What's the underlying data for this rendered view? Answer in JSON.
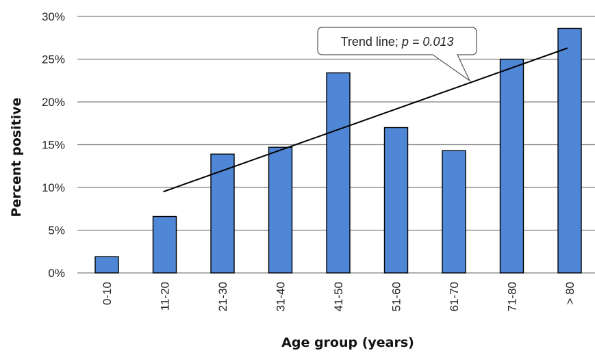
{
  "chart_data": {
    "type": "bar",
    "title": "",
    "xlabel": "Age group (years)",
    "ylabel": "Percent positive",
    "categories": [
      "0-10",
      "11-20",
      "21-30",
      "31-40",
      "41-50",
      "51-60",
      "61-70",
      "71-80",
      "> 80"
    ],
    "series": [
      {
        "values": [
          1.9,
          6.6,
          13.9,
          14.7,
          23.4,
          17.0,
          14.3,
          25.0,
          28.6
        ]
      }
    ],
    "ylim": [
      0,
      30
    ],
    "yticks": [
      0,
      5,
      10,
      15,
      20,
      25,
      30
    ],
    "ytick_labels": [
      "0%",
      "5%",
      "10%",
      "15%",
      "20%",
      "25%",
      "30%"
    ],
    "grid": true,
    "colors": {
      "bar": "#4f86d5",
      "bar_border": "#000000",
      "grid": "#7f7f7f",
      "trend": "#000000"
    },
    "trend_line": {
      "start_category": "11-20",
      "start_value": 9.5,
      "end_category": "> 80",
      "end_value": 26.3
    },
    "annotation": {
      "prefix": "Trend line; ",
      "p_text": "p = 0.013"
    }
  }
}
